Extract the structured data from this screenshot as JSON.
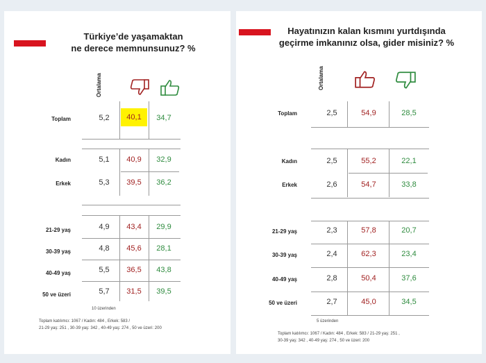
{
  "left": {
    "title_line1": "Türkiye’de yaşamaktan",
    "title_line2": "ne derece memnunsunuz? %",
    "avg_header": "Ortalama",
    "rows": [
      {
        "label": "Toplam",
        "avg": "5,2",
        "neg": "40,1",
        "pos": "34,7"
      },
      {
        "label": "Kadın",
        "avg": "5,1",
        "neg": "40,9",
        "pos": "32,9"
      },
      {
        "label": "Erkek",
        "avg": "5,3",
        "neg": "39,5",
        "pos": "36,2"
      },
      {
        "label": "21-29 yaş",
        "avg": "4,9",
        "neg": "43,4",
        "pos": "29,9"
      },
      {
        "label": "30-39 yaş",
        "avg": "4,8",
        "neg": "45,6",
        "pos": "28,1"
      },
      {
        "label": "40-49 yaş",
        "avg": "5,5",
        "neg": "36,5",
        "pos": "43,8"
      },
      {
        "label": "50 ve üzeri",
        "avg": "5,7",
        "neg": "31,5",
        "pos": "39,5"
      }
    ],
    "scale_note": "10 üzerinden",
    "footnote_line1": "Toplam katılımcı: 1067 / Kadın: 484 , Erkek: 583 /",
    "footnote_line2": "21-29 yaş: 251 , 30-39 yaş: 342 , 40-49 yaş: 274 , 50 ve üzeri: 200"
  },
  "right": {
    "title_line1": "Hayatınızın kalan kısmını yurtdışında",
    "title_line2": "geçirme imkanınız olsa, gider misiniz? %",
    "avg_header": "Ortalama",
    "rows": [
      {
        "label": "Toplam",
        "avg": "2,5",
        "neg": "54,9",
        "pos": "28,5"
      },
      {
        "label": "Kadın",
        "avg": "2,5",
        "neg": "55,2",
        "pos": "22,1"
      },
      {
        "label": "Erkek",
        "avg": "2,6",
        "neg": "54,7",
        "pos": "33,8"
      },
      {
        "label": "21-29 yaş",
        "avg": "2,3",
        "neg": "57,8",
        "pos": "20,7"
      },
      {
        "label": "30-39 yaş",
        "avg": "2,4",
        "neg": "62,3",
        "pos": "23,4"
      },
      {
        "label": "40-49 yaş",
        "avg": "2,8",
        "neg": "50,4",
        "pos": "37,6"
      },
      {
        "label": "50 ve üzeri",
        "avg": "2,7",
        "neg": "45,0",
        "pos": "34,5"
      }
    ],
    "scale_note": "5 üzerinden",
    "footnote_line1": "Toplam katılımcı: 1067 / Kadın: 484 , Erkek: 583 / 21-29 yaş: 251 ,",
    "footnote_line2": "30-39 yaş: 342 , 40-49 yaş: 274 , 50 ve üzeri: 200"
  },
  "colors": {
    "accent_red": "#d8141f",
    "negative": "#a12121",
    "positive": "#2e8b3e",
    "highlight": "#fff200"
  },
  "icons": {
    "left_first": "thumbs-down-icon",
    "left_second": "thumbs-up-icon",
    "right_first": "thumbs-up-icon",
    "right_second": "thumbs-down-icon"
  }
}
